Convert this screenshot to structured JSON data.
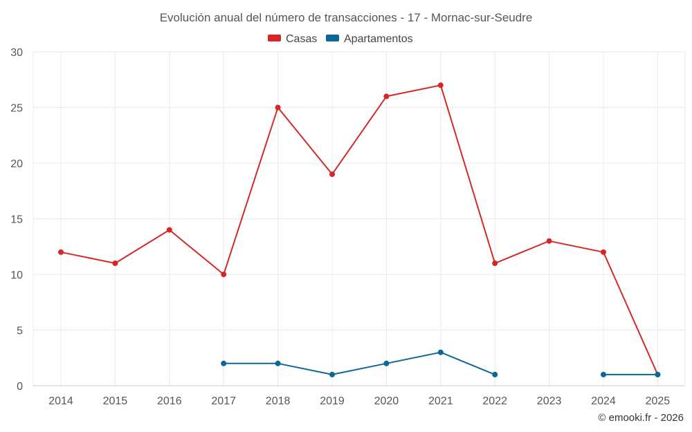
{
  "chart_data": {
    "type": "line",
    "title": "Evolución anual del número de transacciones - 17 - Mornac-sur-Seudre",
    "categories": [
      "2014",
      "2015",
      "2016",
      "2017",
      "2018",
      "2019",
      "2020",
      "2021",
      "2022",
      "2023",
      "2024",
      "2025"
    ],
    "series": [
      {
        "name": "Casas",
        "color": "#d62728",
        "values": [
          12,
          11,
          14,
          10,
          25,
          19,
          26,
          27,
          11,
          13,
          12,
          1
        ]
      },
      {
        "name": "Apartamentos",
        "color": "#0a6799",
        "values": [
          null,
          null,
          null,
          2,
          2,
          1,
          2,
          3,
          1,
          null,
          1,
          1
        ]
      }
    ],
    "ylim": [
      0,
      30
    ],
    "yticks": [
      0,
      5,
      10,
      15,
      20,
      25,
      30
    ],
    "grid": true,
    "legend": "top-center",
    "xlabel": "",
    "ylabel": ""
  },
  "credit": "© emooki.fr - 2026"
}
